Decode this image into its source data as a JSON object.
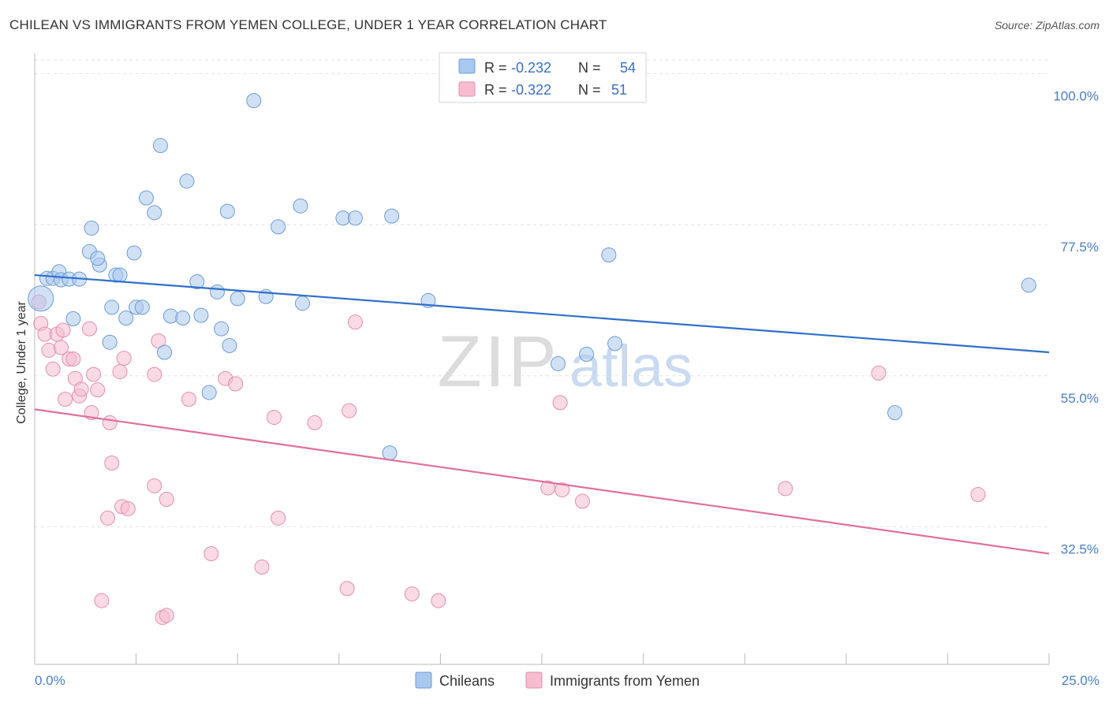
{
  "title": "CHILEAN VS IMMIGRANTS FROM YEMEN COLLEGE, UNDER 1 YEAR CORRELATION CHART",
  "source": "Source: ZipAtlas.com",
  "watermark": {
    "zip": "ZIP",
    "atlas": "atlas"
  },
  "colors": {
    "blue_fill": "#a9c8ee",
    "blue_stroke": "#6d9bd6",
    "blue_line": "#2f6fcd",
    "pink_fill": "#f6bcd0",
    "pink_stroke": "#e48eac",
    "pink_line": "#e0709a",
    "tick_label": "#4a7ec8",
    "grid": "#e3e3e3"
  },
  "chart_data": {
    "type": "scatter",
    "xlabel": "",
    "ylabel": "College, Under 1 year",
    "xlim": [
      0,
      25
    ],
    "ylim": [
      12,
      103
    ],
    "x_tick_labels": [
      "0.0%",
      "25.0%"
    ],
    "y_ticks": [
      32.5,
      55.0,
      77.5,
      100.0
    ],
    "y_tick_labels": [
      "32.5%",
      "55.0%",
      "77.5%",
      "100.0%"
    ],
    "legend_position": "top-center",
    "legend": [
      {
        "r_label": "R =",
        "r_value": "-0.232",
        "n_label": "N =",
        "n_value": "54"
      },
      {
        "r_label": "R =",
        "r_value": "-0.322",
        "n_label": "N =",
        "n_value": "51"
      }
    ],
    "series": [
      {
        "name": "Chileans",
        "color": "blue",
        "trend": {
          "x": [
            0,
            25
          ],
          "y": [
            70.0,
            58.5
          ]
        },
        "points": [
          [
            0.15,
            66.5,
            16
          ],
          [
            0.3,
            69.5,
            9
          ],
          [
            0.45,
            69.5,
            9
          ],
          [
            0.6,
            70.5,
            9
          ],
          [
            0.65,
            69.3,
            9
          ],
          [
            0.85,
            69.4,
            9
          ],
          [
            1.1,
            69.4,
            9
          ],
          [
            1.4,
            77.0,
            9
          ],
          [
            1.35,
            73.5,
            9
          ],
          [
            1.6,
            71.5,
            9
          ],
          [
            1.55,
            72.5,
            9
          ],
          [
            2.0,
            70.0,
            9
          ],
          [
            2.1,
            70.0,
            9
          ],
          [
            2.45,
            73.3,
            9
          ],
          [
            1.9,
            65.2,
            9
          ],
          [
            1.85,
            60.0,
            9
          ],
          [
            2.5,
            65.2,
            9
          ],
          [
            2.65,
            65.2,
            9
          ],
          [
            2.25,
            63.6,
            9
          ],
          [
            0.95,
            63.5,
            9
          ],
          [
            2.75,
            81.5,
            9
          ],
          [
            2.95,
            79.3,
            9
          ],
          [
            3.1,
            89.3,
            9
          ],
          [
            3.75,
            84.0,
            9
          ],
          [
            4.0,
            69.0,
            9
          ],
          [
            3.35,
            63.9,
            9
          ],
          [
            3.65,
            63.6,
            9
          ],
          [
            4.1,
            64.0,
            9
          ],
          [
            3.2,
            58.5,
            9
          ],
          [
            4.3,
            52.5,
            9
          ],
          [
            4.5,
            67.5,
            9
          ],
          [
            4.6,
            62.0,
            9
          ],
          [
            4.8,
            59.5,
            9
          ],
          [
            4.75,
            79.5,
            9
          ],
          [
            5.0,
            66.5,
            9
          ],
          [
            5.4,
            96.0,
            9
          ],
          [
            5.7,
            66.8,
            9
          ],
          [
            6.0,
            77.2,
            9
          ],
          [
            6.6,
            65.8,
            9
          ],
          [
            6.55,
            80.3,
            9
          ],
          [
            7.6,
            78.5,
            9
          ],
          [
            7.9,
            78.5,
            9
          ],
          [
            8.8,
            78.8,
            9
          ],
          [
            8.75,
            43.5,
            9
          ],
          [
            9.7,
            66.2,
            9
          ],
          [
            12.9,
            56.8,
            9
          ],
          [
            13.6,
            58.2,
            9
          ],
          [
            14.15,
            73.0,
            9
          ],
          [
            14.3,
            59.8,
            9
          ],
          [
            21.2,
            49.5,
            9
          ],
          [
            24.5,
            68.5,
            9
          ]
        ]
      },
      {
        "name": "Immigrants from Yemen",
        "color": "pink",
        "trend": {
          "x": [
            0,
            25
          ],
          "y": [
            50.0,
            28.5
          ]
        },
        "points": [
          [
            0.1,
            66.0,
            9
          ],
          [
            0.15,
            62.8,
            9
          ],
          [
            0.25,
            61.2,
            9
          ],
          [
            0.35,
            58.8,
            9
          ],
          [
            0.45,
            56.0,
            9
          ],
          [
            0.55,
            61.2,
            9
          ],
          [
            0.65,
            59.2,
            9
          ],
          [
            0.7,
            61.8,
            9
          ],
          [
            0.75,
            51.5,
            9
          ],
          [
            0.85,
            57.5,
            9
          ],
          [
            0.95,
            57.5,
            9
          ],
          [
            1.0,
            54.6,
            9
          ],
          [
            1.1,
            52.0,
            9
          ],
          [
            1.15,
            53.0,
            9
          ],
          [
            1.4,
            49.5,
            9
          ],
          [
            1.35,
            62.0,
            9
          ],
          [
            1.45,
            55.2,
            9
          ],
          [
            1.55,
            52.9,
            9
          ],
          [
            1.85,
            48.0,
            9
          ],
          [
            1.9,
            42.0,
            9
          ],
          [
            2.1,
            55.6,
            9
          ],
          [
            2.15,
            35.5,
            9
          ],
          [
            2.2,
            57.6,
            9
          ],
          [
            2.3,
            35.2,
            9
          ],
          [
            1.8,
            33.8,
            9
          ],
          [
            2.95,
            55.2,
            9
          ],
          [
            2.95,
            38.6,
            9
          ],
          [
            3.05,
            60.2,
            9
          ],
          [
            3.25,
            36.6,
            9
          ],
          [
            3.15,
            19.0,
            9
          ],
          [
            3.25,
            19.3,
            9
          ],
          [
            1.65,
            21.5,
            9
          ],
          [
            3.8,
            51.5,
            9
          ],
          [
            4.35,
            28.5,
            9
          ],
          [
            4.7,
            54.6,
            9
          ],
          [
            4.95,
            53.8,
            9
          ],
          [
            5.6,
            26.5,
            9
          ],
          [
            5.9,
            48.8,
            9
          ],
          [
            6.0,
            33.8,
            9
          ],
          [
            6.9,
            48.0,
            9
          ],
          [
            7.7,
            23.3,
            9
          ],
          [
            7.75,
            49.8,
            9
          ],
          [
            7.9,
            63.0,
            9
          ],
          [
            9.3,
            22.5,
            9
          ],
          [
            9.95,
            21.5,
            9
          ],
          [
            12.65,
            38.3,
            9
          ],
          [
            12.95,
            51.0,
            9
          ],
          [
            13.0,
            38.0,
            9
          ],
          [
            13.5,
            36.3,
            9
          ],
          [
            18.5,
            38.2,
            9
          ],
          [
            20.8,
            55.4,
            9
          ],
          [
            23.25,
            37.3,
            9
          ]
        ]
      }
    ]
  }
}
